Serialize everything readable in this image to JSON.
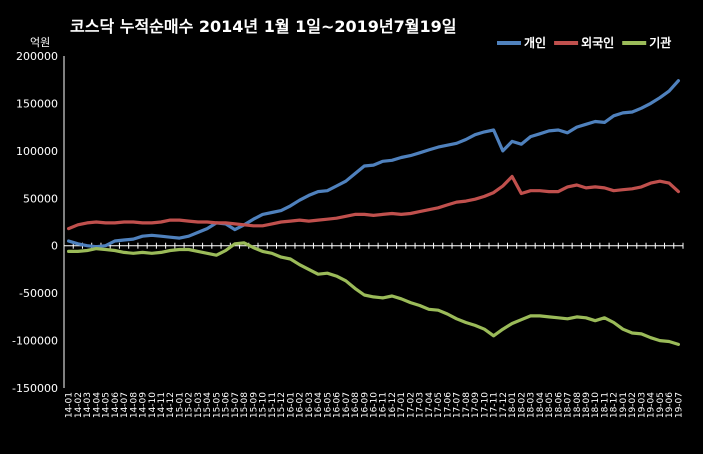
{
  "chart_data": {
    "type": "line",
    "title": "코스닥  누적순매수 2014년 1월 1일~2019년7월19일",
    "ylabel": "억원",
    "xlabel": "",
    "ylim": [
      -150000,
      200000
    ],
    "yticks": [
      "200000",
      "150000",
      "100000",
      "50000",
      "0",
      "-50000",
      "-100000",
      "-150000"
    ],
    "legend_position": "top-right",
    "grid": false,
    "background": "#000000",
    "x": [
      "14-01",
      "14-02",
      "14-03",
      "14-04",
      "14-05",
      "14-06",
      "14-07",
      "14-08",
      "14-09",
      "14-10",
      "14-11",
      "14-12",
      "15-01",
      "15-02",
      "15-03",
      "15-04",
      "15-05",
      "15-06",
      "15-07",
      "15-08",
      "15-09",
      "15-10",
      "15-11",
      "15-12",
      "16-01",
      "16-02",
      "16-03",
      "16-04",
      "16-05",
      "16-06",
      "16-07",
      "16-08",
      "16-09",
      "16-10",
      "16-11",
      "16-12",
      "17-01",
      "17-02",
      "17-03",
      "17-04",
      "17-05",
      "17-06",
      "17-07",
      "17-08",
      "17-09",
      "17-10",
      "17-11",
      "17-12",
      "18-01",
      "18-02",
      "18-03",
      "18-04",
      "18-05",
      "18-06",
      "18-07",
      "18-08",
      "18-09",
      "18-10",
      "18-11",
      "18-12",
      "19-01",
      "19-02",
      "19-03",
      "19-04",
      "19-05",
      "19-06",
      "19-07"
    ],
    "series": [
      {
        "name": "개인",
        "color": "#4F81BD",
        "values": [
          5000,
          2000,
          0,
          -1000,
          0,
          5000,
          6000,
          7000,
          10000,
          11000,
          10000,
          9000,
          8000,
          10000,
          14000,
          18000,
          24000,
          23000,
          17000,
          22000,
          28000,
          33000,
          35000,
          37000,
          42000,
          48000,
          53000,
          57000,
          58000,
          63000,
          68000,
          76000,
          84000,
          85000,
          89000,
          90000,
          93000,
          95000,
          98000,
          101000,
          104000,
          106000,
          108000,
          112000,
          117000,
          120000,
          122000,
          100000,
          110000,
          107000,
          115000,
          118000,
          121000,
          122000,
          119000,
          125000,
          128000,
          131000,
          130000,
          137000,
          140000,
          141000,
          145000,
          150000,
          156000,
          163000,
          174000
        ]
      },
      {
        "name": "외국인",
        "color": "#C0504D",
        "values": [
          18000,
          22000,
          24000,
          25000,
          24000,
          24000,
          25000,
          25000,
          24000,
          24000,
          25000,
          27000,
          27000,
          26000,
          25000,
          25000,
          24000,
          24000,
          23000,
          22000,
          21000,
          21000,
          23000,
          25000,
          26000,
          27000,
          26000,
          27000,
          28000,
          29000,
          31000,
          33000,
          33000,
          32000,
          33000,
          34000,
          33000,
          34000,
          36000,
          38000,
          40000,
          43000,
          46000,
          47000,
          49000,
          52000,
          56000,
          63000,
          73000,
          55000,
          58000,
          58000,
          57000,
          57000,
          62000,
          64000,
          61000,
          62000,
          61000,
          58000,
          59000,
          60000,
          62000,
          66000,
          68000,
          66000,
          57000
        ]
      },
      {
        "name": "기관",
        "color": "#9BBB59",
        "values": [
          -6000,
          -6000,
          -5000,
          -3000,
          -4000,
          -5000,
          -7000,
          -8000,
          -7000,
          -8000,
          -7000,
          -5000,
          -4000,
          -4000,
          -6000,
          -8000,
          -10000,
          -5000,
          2000,
          3000,
          -2000,
          -6000,
          -8000,
          -12000,
          -14000,
          -20000,
          -25000,
          -30000,
          -29000,
          -32000,
          -37000,
          -45000,
          -52000,
          -54000,
          -55000,
          -53000,
          -56000,
          -60000,
          -63000,
          -67000,
          -68000,
          -72000,
          -77000,
          -81000,
          -84000,
          -88000,
          -95000,
          -88000,
          -82000,
          -78000,
          -74000,
          -74000,
          -75000,
          -76000,
          -77000,
          -75000,
          -76000,
          -79000,
          -76000,
          -81000,
          -88000,
          -92000,
          -93000,
          -97000,
          -100000,
          -101000,
          -104000
        ]
      }
    ]
  }
}
